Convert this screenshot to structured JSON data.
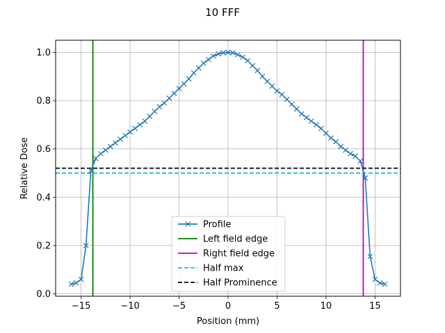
{
  "chart_data": {
    "type": "line",
    "title": "10 FFF",
    "xlabel": "Position (mm)",
    "ylabel": "Relative Dose",
    "xlim": [
      -17.6,
      17.6
    ],
    "ylim": [
      -0.01,
      1.05
    ],
    "xticks": [
      -15,
      -10,
      -5,
      0,
      5,
      10,
      15
    ],
    "xtick_labels": [
      "−15",
      "−10",
      "−5",
      "0",
      "5",
      "10",
      "15"
    ],
    "yticks": [
      0.0,
      0.2,
      0.4,
      0.6,
      0.8,
      1.0
    ],
    "ytick_labels": [
      "0.0",
      "0.2",
      "0.4",
      "0.6",
      "0.8",
      "1.0"
    ],
    "grid": true,
    "legend_position": "lower center",
    "series": [
      {
        "name": "Profile",
        "color": "#1f77b4",
        "marker": "x",
        "x": [
          -16.0,
          -15.5,
          -15.0,
          -14.5,
          -14.0,
          -13.5,
          -13.0,
          -12.5,
          -12.0,
          -11.5,
          -11.0,
          -10.5,
          -10.0,
          -9.5,
          -9.0,
          -8.5,
          -8.0,
          -7.5,
          -7.0,
          -6.5,
          -6.0,
          -5.5,
          -5.0,
          -4.5,
          -4.0,
          -3.5,
          -3.0,
          -2.5,
          -2.0,
          -1.5,
          -1.0,
          -0.5,
          0.0,
          0.5,
          1.0,
          1.5,
          2.0,
          2.5,
          3.0,
          3.5,
          4.0,
          4.5,
          5.0,
          5.5,
          6.0,
          6.5,
          7.0,
          7.5,
          8.0,
          8.5,
          9.0,
          9.5,
          10.0,
          10.5,
          11.0,
          11.5,
          12.0,
          12.5,
          13.0,
          13.5,
          14.0,
          14.5,
          15.0,
          15.5,
          16.0
        ],
        "y": [
          0.04,
          0.045,
          0.06,
          0.2,
          0.51,
          0.56,
          0.58,
          0.595,
          0.61,
          0.625,
          0.64,
          0.655,
          0.67,
          0.685,
          0.7,
          0.715,
          0.735,
          0.755,
          0.775,
          0.79,
          0.81,
          0.83,
          0.85,
          0.87,
          0.89,
          0.915,
          0.935,
          0.955,
          0.97,
          0.985,
          0.993,
          0.998,
          1.0,
          0.998,
          0.99,
          0.98,
          0.965,
          0.945,
          0.925,
          0.9,
          0.88,
          0.86,
          0.84,
          0.825,
          0.805,
          0.785,
          0.765,
          0.745,
          0.73,
          0.715,
          0.7,
          0.685,
          0.665,
          0.645,
          0.63,
          0.61,
          0.595,
          0.58,
          0.57,
          0.55,
          0.48,
          0.155,
          0.06,
          0.045,
          0.04
        ]
      },
      {
        "name": "Left field edge",
        "color": "#008000",
        "style": "solid",
        "x": -13.8
      },
      {
        "name": "Right field edge",
        "color": "#bf00bf",
        "style": "solid",
        "x": 13.8
      },
      {
        "name": "Half max",
        "color": "#17becf",
        "style": "dashed",
        "y": 0.5
      },
      {
        "name": "Half Prominence",
        "color": "#000000",
        "style": "dashed",
        "y": 0.52
      }
    ]
  }
}
